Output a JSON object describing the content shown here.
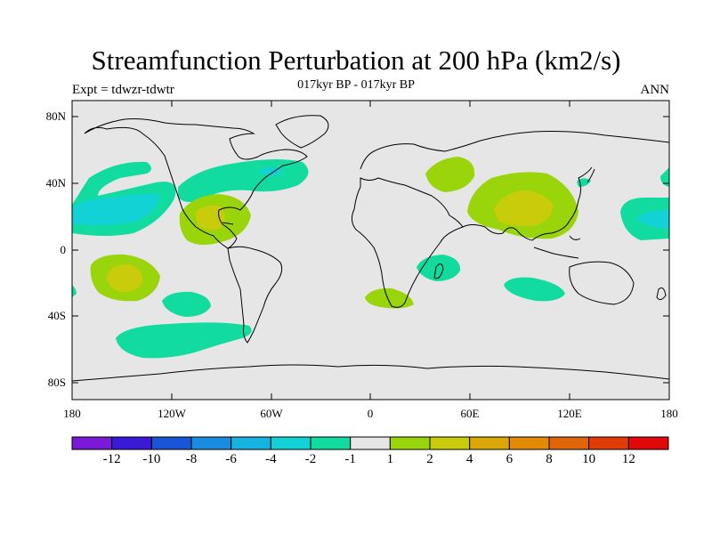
{
  "header": {
    "title": "Streamfunction Perturbation at 200 hPa (km2/s)",
    "subtitle": "017kyr BP - 017kyr BP",
    "left_label": "Expt = tdwzr-tdwtr",
    "right_label": "ANN"
  },
  "axes": {
    "lat_ticks": [
      "80N",
      "40N",
      "0",
      "40S",
      "80S"
    ],
    "lon_ticks": [
      "180",
      "120W",
      "60W",
      "0",
      "60E",
      "120E",
      "180"
    ]
  },
  "colorbar": {
    "labels": [
      "-12",
      "-10",
      "-8",
      "-6",
      "-4",
      "-2",
      "-1",
      "1",
      "2",
      "4",
      "6",
      "8",
      "10",
      "12"
    ],
    "colors": [
      "#7a1ad6",
      "#3a1ad6",
      "#1a55d6",
      "#1a8ce0",
      "#16b3e0",
      "#12d2d6",
      "#12dba0",
      "#e6e6e6",
      "#9ad40a",
      "#c8cc0a",
      "#dca808",
      "#e08a08",
      "#e06408",
      "#e03c08",
      "#e00808"
    ]
  },
  "map": {
    "background": "#e6e6e6",
    "blobs": [
      {
        "name": "blob-npac-green",
        "color": "#12dba0"
      },
      {
        "name": "blob-npac-cyan",
        "color": "#12d2d6"
      },
      {
        "name": "blob-natl-green",
        "color": "#12dba0"
      },
      {
        "name": "blob-natl-cyan",
        "color": "#12d2d6"
      },
      {
        "name": "blob-mexico-yellowgreen",
        "color": "#9ad40a"
      },
      {
        "name": "blob-mexico-yellow",
        "color": "#c8cc0a"
      },
      {
        "name": "blob-caspian-yellowgreen",
        "color": "#9ad40a"
      },
      {
        "name": "blob-asia-yellowgreen",
        "color": "#9ad40a"
      },
      {
        "name": "blob-asia-yellow",
        "color": "#c8cc0a"
      },
      {
        "name": "blob-japan-green",
        "color": "#12dba0"
      },
      {
        "name": "blob-wpac-green",
        "color": "#12dba0"
      },
      {
        "name": "blob-wpac-cyan",
        "color": "#12d2d6"
      },
      {
        "name": "blob-spac-yellowgreen",
        "color": "#9ad40a"
      },
      {
        "name": "blob-spac-yellow",
        "color": "#c8cc0a"
      },
      {
        "name": "blob-africa-yellowgreen",
        "color": "#9ad40a"
      },
      {
        "name": "blob-madagascar-green",
        "color": "#12dba0"
      },
      {
        "name": "blob-indian-green",
        "color": "#12dba0"
      },
      {
        "name": "blob-spac2-green",
        "color": "#12dba0"
      },
      {
        "name": "blob-southern-green",
        "color": "#12dba0"
      }
    ]
  }
}
